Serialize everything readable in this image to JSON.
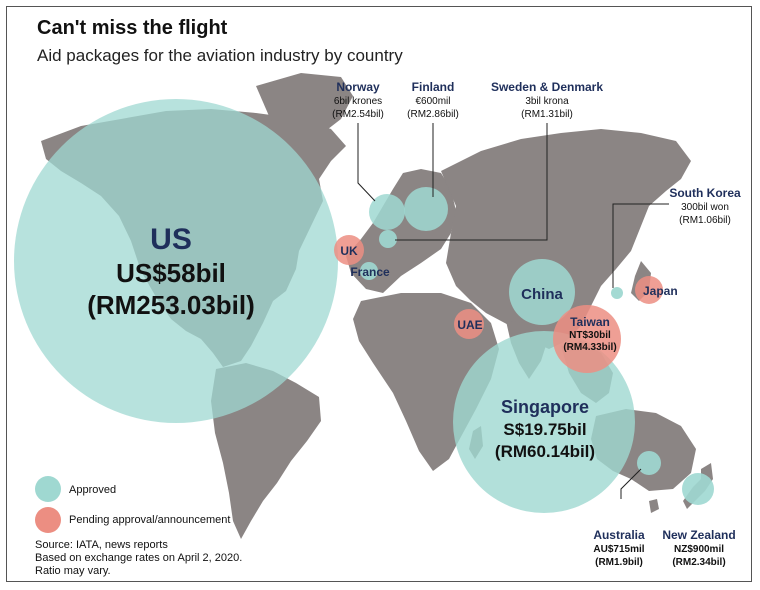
{
  "title": "Can't miss the flight",
  "subtitle": "Aid packages for the aviation industry by country",
  "colors": {
    "approved": "#9fd8d1",
    "pending": "#ec8e82",
    "land": "#8b8584",
    "label": "#1f2f5b"
  },
  "countries": {
    "us": {
      "name": "US",
      "line1": "US$58bil",
      "line2": "(RM253.03bil)",
      "status": "approved"
    },
    "singapore": {
      "name": "Singapore",
      "line1": "S$19.75bil",
      "line2": "(RM60.14bil)",
      "status": "approved"
    },
    "china": {
      "name": "China",
      "status": "approved"
    },
    "norway": {
      "name": "Norway",
      "line1": "6bil krones",
      "line2": "(RM2.54bil)",
      "status": "approved"
    },
    "finland": {
      "name": "Finland",
      "line1": "€600mil",
      "line2": "(RM2.86bil)",
      "status": "approved"
    },
    "sweden_denmark": {
      "name": "Sweden & Denmark",
      "line1": "3bil krona",
      "line2": "(RM1.31bil)",
      "status": "approved"
    },
    "south_korea": {
      "name": "South Korea",
      "line1": "300bil won",
      "line2": "(RM1.06bil)",
      "status": "approved"
    },
    "japan": {
      "name": "Japan",
      "status": "pending"
    },
    "uk": {
      "name": "UK",
      "status": "pending"
    },
    "france": {
      "name": "France",
      "status": "approved"
    },
    "uae": {
      "name": "UAE",
      "status": "pending"
    },
    "taiwan": {
      "name": "Taiwan",
      "line1": "NT$30bil",
      "line2": "(RM4.33bil)",
      "status": "pending"
    },
    "australia": {
      "name": "Australia",
      "line1": "AU$715mil",
      "line2": "(RM1.9bil)",
      "status": "approved"
    },
    "new_zealand": {
      "name": "New Zealand",
      "line1": "NZ$900mil",
      "line2": "(RM2.34bil)",
      "status": "approved"
    }
  },
  "legend": {
    "approved": "Approved",
    "pending": "Pending approval/announcement"
  },
  "notes": [
    "Source: IATA, news reports",
    "Based on exchange rates on April 2, 2020.",
    "Ratio may vary."
  ]
}
